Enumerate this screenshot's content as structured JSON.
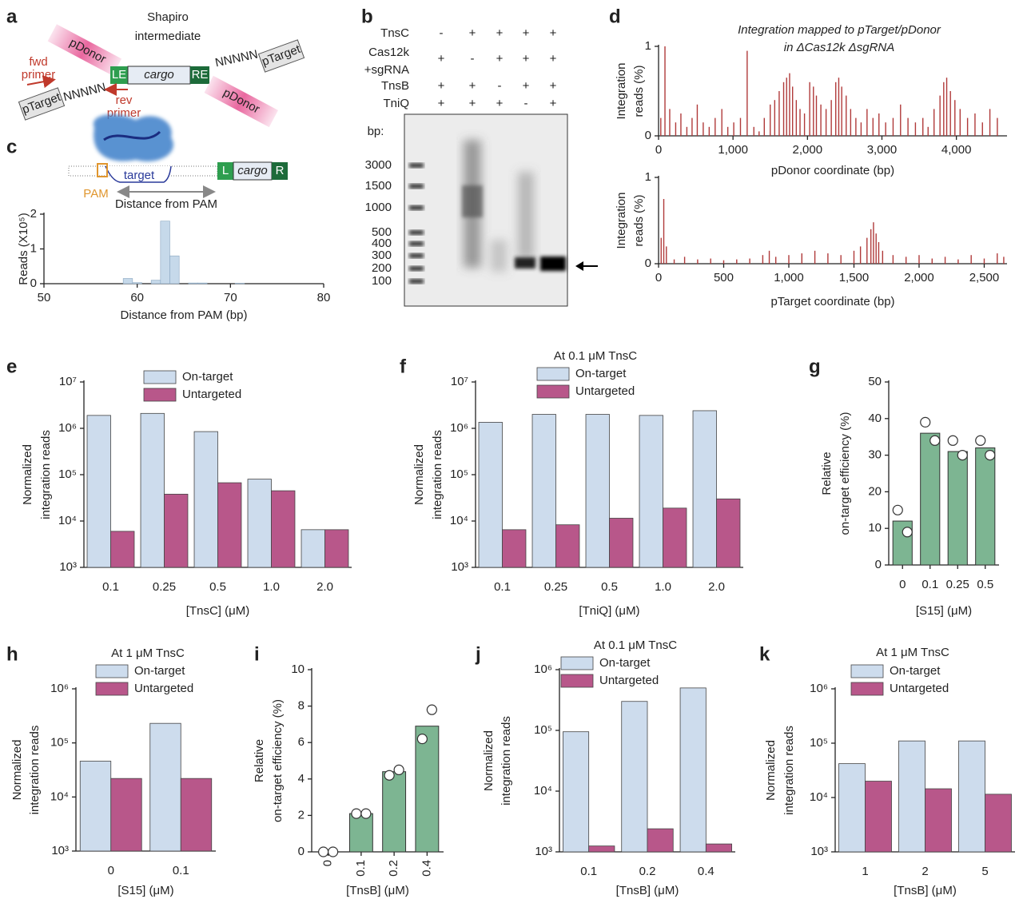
{
  "diagram_a": {
    "panel": "a",
    "title": [
      "Shapiro",
      "intermediate"
    ],
    "donor_left": "pDonor",
    "donor_right": "pDonor",
    "target_left": "pTarget",
    "target_right": "pTarget",
    "spacer_left": "NNNNN",
    "spacer_right": "NNNNN",
    "le": "LE",
    "cargo": "cargo",
    "re": "RE",
    "fwd_primer": [
      "fwd",
      "primer"
    ],
    "rev_primer": [
      "rev",
      "primer"
    ]
  },
  "gel_b": {
    "panel": "b",
    "rows": [
      {
        "name": [
          "TnsC"
        ],
        "signs": [
          "-",
          "+",
          "+",
          "+",
          "+"
        ]
      },
      {
        "name": [
          "Cas12k",
          "+sgRNA"
        ],
        "signs": [
          "+",
          "-",
          "+",
          "+",
          "+"
        ]
      },
      {
        "name": [
          "TnsB"
        ],
        "signs": [
          "+",
          "+",
          "-",
          "+",
          "+"
        ]
      },
      {
        "name": [
          "TniQ"
        ],
        "signs": [
          "+",
          "+",
          "+",
          "-",
          "+"
        ]
      }
    ],
    "bp_label": "bp:",
    "ladder": [
      3000,
      1500,
      1000,
      500,
      400,
      300,
      200,
      100
    ]
  },
  "diagram_c": {
    "panel": "c",
    "target": "target",
    "pam": "PAM",
    "left": "L",
    "cargo": "cargo",
    "right": "R",
    "distance": "Distance from PAM"
  },
  "chart_data": [
    {
      "type": "histogram",
      "xlabel": "Distance from PAM (bp)",
      "ylabel": [
        "Reads (X10⁵)"
      ],
      "color": "#c6d9ea",
      "bins": [
        58.5,
        59.5,
        60.5,
        61.5,
        62.5,
        63.5,
        64.5,
        65.5,
        66.5,
        67.5,
        68.5,
        69.5,
        70.5,
        71.5
      ],
      "values": [
        0.15,
        0.03,
        0,
        0.1,
        1.8,
        0.8,
        0,
        0.02,
        0.02,
        0,
        0,
        0,
        0.01
      ],
      "xlim": [
        50,
        80
      ],
      "xticks": [
        50,
        60,
        70,
        80
      ],
      "ylim": [
        0,
        2
      ],
      "yticks": [
        0,
        1,
        2
      ]
    },
    {
      "type": "bar",
      "panel": "d",
      "title": [
        "Integration mapped to pTarget/pDonor",
        "in ΔCas12k ΔsgRNA"
      ],
      "xlabel": "pDonor coordinate (bp)",
      "ylabel": [
        "Integration",
        "reads (%)"
      ],
      "color": "#b03a3a",
      "x": [
        30,
        86,
        150,
        230,
        300,
        380,
        450,
        520,
        600,
        680,
        760,
        850,
        930,
        1010,
        1100,
        1190,
        1280,
        1350,
        1420,
        1500,
        1560,
        1620,
        1680,
        1720,
        1760,
        1800,
        1850,
        1900,
        1960,
        2030,
        2080,
        2120,
        2180,
        2250,
        2320,
        2380,
        2420,
        2460,
        2520,
        2580,
        2650,
        2720,
        2800,
        2880,
        2960,
        3050,
        3150,
        3250,
        3350,
        3450,
        3550,
        3620,
        3700,
        3780,
        3830,
        3870,
        3920,
        3980,
        4050,
        4150,
        4250,
        4350,
        4450,
        4550
      ],
      "values": [
        0.2,
        1.0,
        0.3,
        0.15,
        0.25,
        0.1,
        0.2,
        0.35,
        0.15,
        0.1,
        0.2,
        0.3,
        0.1,
        0.15,
        0.2,
        0.95,
        0.1,
        0.05,
        0.2,
        0.35,
        0.4,
        0.5,
        0.6,
        0.65,
        0.7,
        0.55,
        0.4,
        0.3,
        0.25,
        0.6,
        0.55,
        0.45,
        0.35,
        0.3,
        0.4,
        0.6,
        0.65,
        0.55,
        0.45,
        0.3,
        0.2,
        0.15,
        0.3,
        0.2,
        0.25,
        0.15,
        0.2,
        0.35,
        0.2,
        0.15,
        0.2,
        0.1,
        0.3,
        0.45,
        0.6,
        0.65,
        0.5,
        0.4,
        0.3,
        0.2,
        0.25,
        0.15,
        0.3,
        0.2
      ],
      "xlim": [
        0,
        4680
      ],
      "xticks": [
        0,
        {
          "value": 1000,
          "label": "1,000"
        },
        {
          "value": 2000,
          "label": "2,000"
        },
        {
          "value": 3000,
          "label": "3,000"
        },
        {
          "value": 4000,
          "label": "4,000"
        }
      ],
      "ylim": [
        0,
        1
      ],
      "yticks": [
        0,
        1
      ]
    },
    {
      "type": "bar",
      "xlabel": "pTarget coordinate (bp)",
      "ylabel": [
        "Integration",
        "reads (%)"
      ],
      "color": "#b03a3a",
      "x": [
        20,
        40,
        60,
        120,
        200,
        300,
        400,
        500,
        600,
        700,
        800,
        850,
        900,
        1000,
        1100,
        1200,
        1300,
        1400,
        1500,
        1550,
        1600,
        1630,
        1650,
        1670,
        1690,
        1720,
        1800,
        1900,
        2000,
        2100,
        2200,
        2300,
        2400,
        2500,
        2600,
        2650
      ],
      "values": [
        0.3,
        0.75,
        0.2,
        0.05,
        0.08,
        0.05,
        0.06,
        0.04,
        0.05,
        0.06,
        0.1,
        0.15,
        0.08,
        0.1,
        0.12,
        0.15,
        0.12,
        0.1,
        0.15,
        0.2,
        0.3,
        0.4,
        0.48,
        0.35,
        0.25,
        0.15,
        0.1,
        0.08,
        0.1,
        0.06,
        0.08,
        0.05,
        0.1,
        0.06,
        0.12,
        0.08
      ],
      "xlim": [
        0,
        2675
      ],
      "xticks": [
        0,
        500,
        {
          "value": 1000,
          "label": "1,000"
        },
        {
          "value": 1500,
          "label": "1,500"
        },
        {
          "value": 2000,
          "label": "2,000"
        },
        {
          "value": 2500,
          "label": "2,500"
        }
      ],
      "ylim": [
        0,
        1
      ],
      "yticks": [
        0,
        1
      ]
    },
    {
      "type": "bar",
      "panel": "e",
      "log": true,
      "xlabel": "[TnsC] (μM)",
      "ylabel": [
        "Normalized",
        "integration reads"
      ],
      "categories": [
        "0.1",
        "0.25",
        "0.5",
        "1.0",
        "2.0"
      ],
      "series": [
        {
          "name": "On-target",
          "color": "#cddced",
          "values": [
            1900000,
            2100000,
            850000,
            80000,
            6500
          ]
        },
        {
          "name": "Untargeted",
          "color": "#b8578a",
          "values": [
            6000,
            38000,
            67000,
            45000,
            6500
          ]
        }
      ],
      "ylim": [
        1000,
        10000000
      ],
      "yticks": [
        {
          "value": 1000,
          "label": "10³"
        },
        {
          "value": 10000,
          "label": "10⁴"
        },
        {
          "value": 100000,
          "label": "10⁵"
        },
        {
          "value": 1000000,
          "label": "10⁶"
        },
        {
          "value": 10000000,
          "label": "10⁷"
        }
      ]
    },
    {
      "type": "bar",
      "panel": "f",
      "log": true,
      "title": [
        "At 0.1 μM TnsC"
      ],
      "xlabel": "[TniQ] (μM)",
      "ylabel": [
        "Normalized",
        "integration reads"
      ],
      "categories": [
        "0.1",
        "0.25",
        "0.5",
        "1.0",
        "2.0"
      ],
      "series": [
        {
          "name": "On-target",
          "color": "#cddced",
          "values": [
            1350000,
            2000000,
            2000000,
            1900000,
            2400000
          ]
        },
        {
          "name": "Untargeted",
          "color": "#b8578a",
          "values": [
            6500,
            8300,
            11500,
            19000,
            30000
          ]
        }
      ],
      "ylim": [
        1000,
        10000000
      ],
      "yticks": [
        {
          "value": 1000,
          "label": "10³"
        },
        {
          "value": 10000,
          "label": "10⁴"
        },
        {
          "value": 100000,
          "label": "10⁵"
        },
        {
          "value": 1000000,
          "label": "10⁶"
        },
        {
          "value": 10000000,
          "label": "10⁷"
        }
      ]
    },
    {
      "type": "bar",
      "panel": "g",
      "xlabel": "[S15] (μM)",
      "ylabel": [
        "Relative",
        "on-target efficiency (%)"
      ],
      "color": "#7db592",
      "categories": [
        "0",
        "0.1",
        "0.25",
        "0.5"
      ],
      "values": [
        12,
        36,
        31,
        32
      ],
      "points": [
        [
          15,
          9
        ],
        [
          39,
          34
        ],
        [
          34,
          30
        ],
        [
          34,
          30
        ]
      ],
      "ylim": [
        0,
        50
      ],
      "yticks": [
        0,
        10,
        20,
        30,
        40,
        50
      ]
    },
    {
      "type": "bar",
      "panel": "h",
      "log": true,
      "title": [
        "At 1 μM TnsC"
      ],
      "xlabel": "[S15] (μM)",
      "ylabel": [
        "Normalized",
        "integration reads"
      ],
      "categories": [
        "0",
        "0.1"
      ],
      "series": [
        {
          "name": "On-target",
          "color": "#cddced",
          "values": [
            46000,
            230000
          ]
        },
        {
          "name": "Untargeted",
          "color": "#b8578a",
          "values": [
            22000,
            22000
          ]
        }
      ],
      "ylim": [
        1000,
        1000000
      ],
      "yticks": [
        {
          "value": 1000,
          "label": "10³"
        },
        {
          "value": 10000,
          "label": "10⁴"
        },
        {
          "value": 100000,
          "label": "10⁵"
        },
        {
          "value": 1000000,
          "label": "10⁶"
        }
      ]
    },
    {
      "type": "bar",
      "panel": "i",
      "xlabel": "[TnsB] (μM)",
      "ylabel": [
        "Relative",
        "on-target efficiency (%)"
      ],
      "color": "#7db592",
      "categories": [
        "0",
        "0.1",
        "0.2",
        "0.4"
      ],
      "values": [
        0,
        2.1,
        4.4,
        6.9
      ],
      "points": [
        [
          0,
          0
        ],
        [
          2.1,
          2.1
        ],
        [
          4.2,
          4.5
        ],
        [
          6.2,
          7.8
        ]
      ],
      "ylim": [
        0,
        10
      ],
      "yticks": [
        0,
        2,
        4,
        6,
        8,
        10
      ]
    },
    {
      "type": "bar",
      "panel": "j",
      "log": true,
      "title": [
        "At 0.1 μM TnsC"
      ],
      "xlabel": "[TnsB] (μM)",
      "ylabel": [
        "Normalized",
        "integration reads"
      ],
      "categories": [
        "0.1",
        "0.2",
        "0.4"
      ],
      "series": [
        {
          "name": "On-target",
          "color": "#cddced",
          "values": [
            95000,
            300000,
            500000
          ]
        },
        {
          "name": "Untargeted",
          "color": "#b8578a",
          "values": [
            1250,
            2400,
            1350
          ]
        }
      ],
      "ylim": [
        1000,
        1000000
      ],
      "yticks": [
        {
          "value": 1000,
          "label": "10³"
        },
        {
          "value": 10000,
          "label": "10⁴"
        },
        {
          "value": 100000,
          "label": "10⁵"
        },
        {
          "value": 1000000,
          "label": "10⁶"
        }
      ]
    },
    {
      "type": "bar",
      "panel": "k",
      "log": true,
      "title": [
        "At 1 μM TnsC"
      ],
      "xlabel": "[TnsB] (μM)",
      "ylabel": [
        "Normalized",
        "integration reads"
      ],
      "categories": [
        "1",
        "2",
        "5"
      ],
      "series": [
        {
          "name": "On-target",
          "color": "#cddced",
          "values": [
            42000,
            110000,
            110000
          ]
        },
        {
          "name": "Untargeted",
          "color": "#b8578a",
          "values": [
            20000,
            14500,
            11500
          ]
        }
      ],
      "ylim": [
        1000,
        1000000
      ],
      "yticks": [
        {
          "value": 1000,
          "label": "10³"
        },
        {
          "value": 10000,
          "label": "10⁴"
        },
        {
          "value": 100000,
          "label": "10⁵"
        },
        {
          "value": 1000000,
          "label": "10⁶"
        }
      ]
    }
  ]
}
